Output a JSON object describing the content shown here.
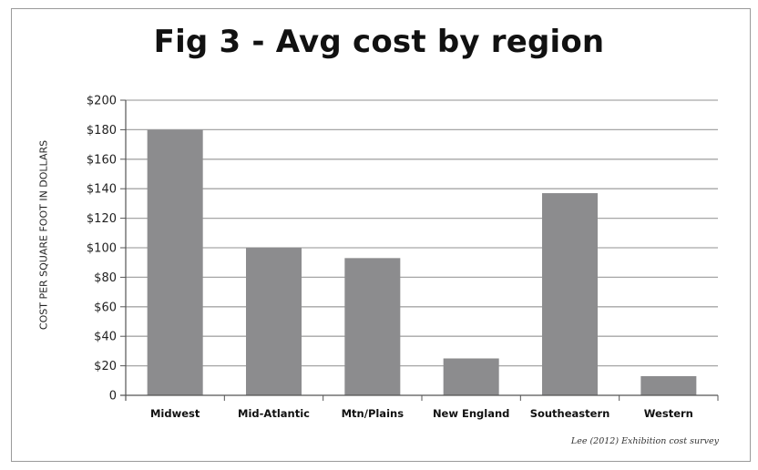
{
  "chart_data": {
    "type": "bar",
    "title": "Fig 3 - Avg cost by region",
    "xlabel": "",
    "ylabel": "COST PER SQUARE FOOT IN DOLLARS",
    "categories": [
      "Midwest",
      "Mid-Atlantic",
      "Mtn/Plains",
      "New England",
      "Southeastern",
      "Western"
    ],
    "values": [
      180,
      100,
      93,
      25,
      137,
      13
    ],
    "ylim": [
      0,
      200
    ],
    "yticks": [
      0,
      20,
      40,
      60,
      80,
      100,
      120,
      140,
      160,
      180,
      200
    ],
    "ytick_labels": [
      "0",
      "$20",
      "$40",
      "$60",
      "$80",
      "$100",
      "$120",
      "$140",
      "$160",
      "$180",
      "$200"
    ],
    "grid": true,
    "bar_color": "#8c8c8e",
    "source_note": "Lee (2012) Exhibition cost survey"
  }
}
